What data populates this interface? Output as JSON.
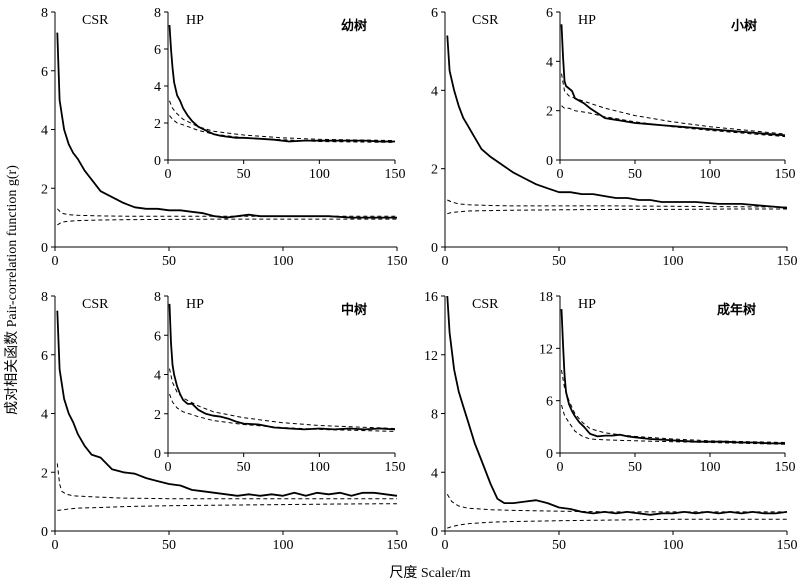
{
  "figure": {
    "xlabel": "尺度 Scaler/m",
    "ylabel": "成对相关函数 Pair-correlation function g(r)"
  },
  "chart_data": [
    {
      "id": "p1-csr",
      "type": "line",
      "annotation": "CSR",
      "xlim": [
        0,
        150
      ],
      "ylim": [
        0,
        8
      ],
      "xticks": [
        0,
        50,
        100,
        150
      ],
      "yticks": [
        0,
        2,
        4,
        6,
        8
      ],
      "series": [
        {
          "style": "observed",
          "x": [
            1,
            2,
            4,
            6,
            8,
            10,
            13,
            16,
            20,
            25,
            30,
            35,
            40,
            45,
            50,
            55,
            60,
            65,
            70,
            75,
            80,
            85,
            90,
            95,
            100,
            110,
            120,
            130,
            140,
            150
          ],
          "y": [
            7.3,
            5.0,
            4.0,
            3.5,
            3.2,
            3.0,
            2.6,
            2.3,
            1.9,
            1.7,
            1.5,
            1.35,
            1.3,
            1.3,
            1.25,
            1.25,
            1.2,
            1.15,
            1.05,
            1.0,
            1.05,
            1.1,
            1.05,
            1.05,
            1.05,
            1.05,
            1.05,
            1.0,
            1.0,
            1.0
          ]
        },
        {
          "style": "envelope",
          "x": [
            1,
            3,
            6,
            10,
            20,
            30,
            50,
            75,
            100,
            125,
            150
          ],
          "y": [
            1.3,
            1.15,
            1.1,
            1.08,
            1.06,
            1.05,
            1.05,
            1.05,
            1.05,
            1.05,
            1.05
          ]
        },
        {
          "style": "envelope",
          "x": [
            1,
            3,
            6,
            10,
            20,
            30,
            50,
            75,
            100,
            125,
            150
          ],
          "y": [
            0.75,
            0.85,
            0.88,
            0.9,
            0.92,
            0.93,
            0.94,
            0.95,
            0.95,
            0.95,
            0.95
          ]
        }
      ]
    },
    {
      "id": "p1-hp",
      "type": "line",
      "annotation": "HP",
      "title": "幼树",
      "xlim": [
        0,
        150
      ],
      "ylim": [
        0,
        8
      ],
      "xticks": [
        0,
        50,
        100,
        150
      ],
      "yticks": [
        0,
        2,
        4,
        6,
        8
      ],
      "series": [
        {
          "style": "observed",
          "x": [
            1,
            2,
            3,
            4,
            6,
            8,
            10,
            13,
            16,
            20,
            25,
            30,
            35,
            40,
            45,
            50,
            60,
            70,
            80,
            90,
            100,
            110,
            120,
            130,
            140,
            150
          ],
          "y": [
            7.3,
            6.0,
            5.0,
            4.2,
            3.5,
            3.2,
            2.8,
            2.4,
            2.1,
            1.8,
            1.6,
            1.4,
            1.3,
            1.25,
            1.2,
            1.2,
            1.15,
            1.1,
            1.0,
            1.05,
            1.05,
            1.05,
            1.05,
            1.05,
            1.0,
            1.0
          ]
        },
        {
          "style": "envelope",
          "x": [
            1,
            3,
            6,
            10,
            20,
            30,
            50,
            75,
            100,
            150
          ],
          "y": [
            3.2,
            2.8,
            2.5,
            2.2,
            1.8,
            1.55,
            1.35,
            1.2,
            1.12,
            1.05
          ]
        },
        {
          "style": "envelope",
          "x": [
            1,
            3,
            6,
            10,
            20,
            30,
            50,
            75,
            100,
            150
          ],
          "y": [
            2.4,
            2.2,
            2.0,
            1.9,
            1.6,
            1.4,
            1.2,
            1.1,
            1.0,
            0.95
          ]
        }
      ]
    },
    {
      "id": "p2-csr",
      "type": "line",
      "annotation": "CSR",
      "xlim": [
        0,
        150
      ],
      "ylim": [
        0,
        6
      ],
      "xticks": [
        0,
        50,
        100,
        150
      ],
      "yticks": [
        0,
        2,
        4,
        6
      ],
      "series": [
        {
          "style": "observed",
          "x": [
            1,
            2,
            4,
            6,
            8,
            10,
            13,
            16,
            20,
            25,
            30,
            35,
            40,
            45,
            50,
            55,
            60,
            65,
            70,
            75,
            80,
            85,
            90,
            95,
            100,
            110,
            120,
            130,
            140,
            150
          ],
          "y": [
            5.4,
            4.5,
            4.0,
            3.6,
            3.3,
            3.1,
            2.8,
            2.5,
            2.3,
            2.1,
            1.9,
            1.75,
            1.6,
            1.5,
            1.4,
            1.4,
            1.35,
            1.35,
            1.3,
            1.25,
            1.25,
            1.2,
            1.2,
            1.15,
            1.15,
            1.15,
            1.1,
            1.1,
            1.05,
            1.0
          ]
        },
        {
          "style": "envelope",
          "x": [
            1,
            3,
            6,
            10,
            20,
            30,
            50,
            75,
            100,
            125,
            150
          ],
          "y": [
            1.2,
            1.15,
            1.1,
            1.08,
            1.06,
            1.05,
            1.05,
            1.05,
            1.04,
            1.03,
            1.02
          ]
        },
        {
          "style": "envelope",
          "x": [
            1,
            3,
            6,
            10,
            20,
            30,
            50,
            75,
            100,
            125,
            150
          ],
          "y": [
            0.85,
            0.88,
            0.9,
            0.92,
            0.93,
            0.94,
            0.95,
            0.96,
            0.96,
            0.97,
            0.97
          ]
        }
      ]
    },
    {
      "id": "p2-hp",
      "type": "line",
      "annotation": "HP",
      "title": "小树",
      "xlim": [
        0,
        150
      ],
      "ylim": [
        0,
        6
      ],
      "xticks": [
        0,
        50,
        100,
        150
      ],
      "yticks": [
        0,
        2,
        4,
        6
      ],
      "series": [
        {
          "style": "observed",
          "x": [
            1,
            2,
            3,
            4,
            6,
            8,
            10,
            13,
            16,
            20,
            25,
            30,
            35,
            40,
            45,
            50,
            60,
            70,
            80,
            90,
            100,
            110,
            120,
            130,
            140,
            150
          ],
          "y": [
            5.5,
            4.2,
            3.2,
            3.0,
            2.9,
            2.8,
            2.5,
            2.4,
            2.3,
            2.1,
            1.9,
            1.7,
            1.65,
            1.6,
            1.55,
            1.5,
            1.45,
            1.4,
            1.35,
            1.3,
            1.25,
            1.2,
            1.15,
            1.1,
            1.05,
            1.0
          ]
        },
        {
          "style": "envelope",
          "x": [
            1,
            3,
            6,
            10,
            20,
            30,
            50,
            75,
            100,
            150
          ],
          "y": [
            3.5,
            2.8,
            2.6,
            2.5,
            2.3,
            2.1,
            1.8,
            1.55,
            1.35,
            1.05
          ]
        },
        {
          "style": "envelope",
          "x": [
            1,
            3,
            6,
            10,
            20,
            30,
            50,
            75,
            100,
            150
          ],
          "y": [
            2.2,
            2.1,
            2.1,
            2.0,
            1.9,
            1.75,
            1.55,
            1.35,
            1.2,
            0.95
          ]
        }
      ]
    },
    {
      "id": "p3-csr",
      "type": "line",
      "annotation": "CSR",
      "xlim": [
        0,
        150
      ],
      "ylim": [
        0,
        8
      ],
      "xticks": [
        0,
        50,
        100,
        150
      ],
      "yticks": [
        0,
        2,
        4,
        6,
        8
      ],
      "series": [
        {
          "style": "observed",
          "x": [
            1,
            2,
            4,
            6,
            8,
            10,
            13,
            16,
            20,
            25,
            30,
            35,
            40,
            45,
            50,
            55,
            60,
            65,
            70,
            75,
            80,
            85,
            90,
            95,
            100,
            105,
            110,
            115,
            120,
            125,
            130,
            135,
            140,
            145,
            150
          ],
          "y": [
            7.5,
            5.5,
            4.5,
            4.0,
            3.7,
            3.3,
            2.9,
            2.6,
            2.5,
            2.1,
            2.0,
            1.95,
            1.8,
            1.7,
            1.6,
            1.55,
            1.4,
            1.35,
            1.3,
            1.25,
            1.2,
            1.25,
            1.2,
            1.25,
            1.2,
            1.3,
            1.2,
            1.3,
            1.25,
            1.3,
            1.2,
            1.3,
            1.3,
            1.25,
            1.2
          ]
        },
        {
          "style": "envelope",
          "x": [
            1,
            2,
            3,
            5,
            8,
            12,
            20,
            30,
            50,
            75,
            100,
            125,
            150
          ],
          "y": [
            2.3,
            1.6,
            1.35,
            1.25,
            1.2,
            1.18,
            1.15,
            1.12,
            1.1,
            1.1,
            1.1,
            1.1,
            1.1
          ]
        },
        {
          "style": "envelope",
          "x": [
            1,
            3,
            6,
            10,
            20,
            30,
            50,
            75,
            100,
            125,
            150
          ],
          "y": [
            0.7,
            0.72,
            0.75,
            0.78,
            0.8,
            0.83,
            0.86,
            0.88,
            0.9,
            0.92,
            0.93
          ]
        }
      ]
    },
    {
      "id": "p3-hp",
      "type": "line",
      "annotation": "HP",
      "title": "中树",
      "xlim": [
        0,
        150
      ],
      "ylim": [
        0,
        8
      ],
      "xticks": [
        0,
        50,
        100,
        150
      ],
      "yticks": [
        0,
        2,
        4,
        6,
        8
      ],
      "series": [
        {
          "style": "observed",
          "x": [
            1,
            2,
            3,
            4,
            6,
            8,
            10,
            13,
            16,
            20,
            25,
            30,
            35,
            40,
            45,
            50,
            60,
            70,
            80,
            90,
            100,
            110,
            120,
            130,
            140,
            150
          ],
          "y": [
            7.6,
            5.6,
            4.5,
            4.0,
            3.4,
            3.0,
            2.7,
            2.5,
            2.5,
            2.2,
            2.0,
            1.9,
            1.85,
            1.75,
            1.6,
            1.5,
            1.45,
            1.3,
            1.25,
            1.2,
            1.25,
            1.2,
            1.25,
            1.2,
            1.25,
            1.2
          ]
        },
        {
          "style": "envelope",
          "x": [
            1,
            3,
            6,
            10,
            20,
            30,
            50,
            75,
            100,
            150
          ],
          "y": [
            4.3,
            3.6,
            3.1,
            2.8,
            2.4,
            2.1,
            1.8,
            1.55,
            1.4,
            1.25
          ]
        },
        {
          "style": "envelope",
          "x": [
            1,
            3,
            6,
            10,
            20,
            30,
            50,
            75,
            100,
            150
          ],
          "y": [
            3.0,
            2.6,
            2.3,
            2.1,
            1.85,
            1.65,
            1.45,
            1.3,
            1.2,
            1.1
          ]
        }
      ]
    },
    {
      "id": "p4-csr",
      "type": "line",
      "annotation": "CSR",
      "xlim": [
        0,
        150
      ],
      "ylim": [
        0,
        16
      ],
      "xticks": [
        0,
        50,
        100,
        150
      ],
      "yticks": [
        0,
        4,
        8,
        12,
        16
      ],
      "series": [
        {
          "style": "observed",
          "x": [
            1,
            2,
            4,
            6,
            8,
            10,
            13,
            16,
            20,
            23,
            26,
            30,
            35,
            40,
            45,
            50,
            55,
            60,
            65,
            70,
            75,
            80,
            85,
            90,
            95,
            100,
            105,
            110,
            115,
            120,
            125,
            130,
            135,
            140,
            145,
            150
          ],
          "y": [
            16,
            13.5,
            11,
            9.5,
            8.5,
            7.5,
            6.0,
            4.8,
            3.2,
            2.2,
            1.9,
            1.9,
            2.0,
            2.1,
            1.9,
            1.6,
            1.5,
            1.3,
            1.2,
            1.3,
            1.2,
            1.3,
            1.2,
            1.1,
            1.2,
            1.2,
            1.3,
            1.2,
            1.3,
            1.2,
            1.3,
            1.2,
            1.3,
            1.2,
            1.2,
            1.3
          ]
        },
        {
          "style": "envelope",
          "x": [
            1,
            3,
            6,
            10,
            20,
            30,
            50,
            75,
            100,
            125,
            150
          ],
          "y": [
            2.5,
            2.0,
            1.7,
            1.55,
            1.45,
            1.4,
            1.35,
            1.3,
            1.3,
            1.3,
            1.3
          ]
        },
        {
          "style": "envelope",
          "x": [
            1,
            3,
            6,
            10,
            20,
            30,
            50,
            75,
            100,
            125,
            150
          ],
          "y": [
            0.2,
            0.3,
            0.4,
            0.5,
            0.6,
            0.65,
            0.7,
            0.75,
            0.8,
            0.8,
            0.8
          ]
        }
      ]
    },
    {
      "id": "p4-hp",
      "type": "line",
      "annotation": "HP",
      "title": "成年树",
      "xlim": [
        0,
        150
      ],
      "ylim": [
        0,
        18
      ],
      "xticks": [
        0,
        50,
        100,
        150
      ],
      "yticks": [
        0,
        6,
        12,
        18
      ],
      "series": [
        {
          "style": "observed",
          "x": [
            1,
            2,
            3,
            4,
            6,
            8,
            10,
            13,
            16,
            20,
            25,
            30,
            35,
            40,
            45,
            50,
            60,
            70,
            80,
            90,
            100,
            110,
            120,
            130,
            140,
            150
          ],
          "y": [
            16.5,
            12.5,
            9.0,
            7.0,
            5.6,
            4.8,
            4.2,
            3.5,
            3.0,
            2.2,
            1.9,
            2.0,
            2.0,
            2.1,
            1.9,
            1.8,
            1.6,
            1.5,
            1.4,
            1.3,
            1.3,
            1.3,
            1.2,
            1.2,
            1.1,
            1.1
          ]
        },
        {
          "style": "envelope",
          "x": [
            1,
            3,
            6,
            10,
            15,
            20,
            30,
            50,
            75,
            100,
            150
          ],
          "y": [
            9.5,
            7.5,
            6.0,
            4.5,
            3.5,
            2.8,
            2.3,
            1.9,
            1.6,
            1.4,
            1.2
          ]
        },
        {
          "style": "envelope",
          "x": [
            1,
            3,
            6,
            10,
            15,
            20,
            30,
            50,
            75,
            100,
            150
          ],
          "y": [
            5.5,
            4.3,
            3.5,
            2.5,
            1.9,
            1.6,
            1.5,
            1.4,
            1.3,
            1.2,
            1.0
          ]
        }
      ]
    }
  ]
}
